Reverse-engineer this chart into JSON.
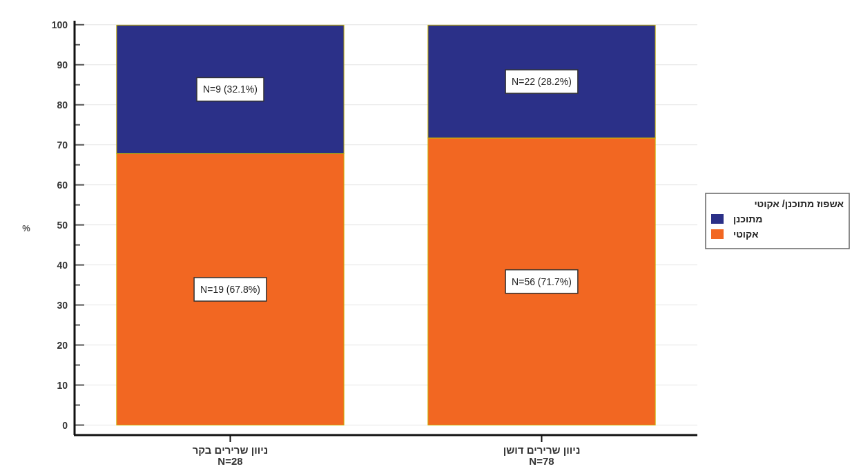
{
  "chart_data": {
    "type": "bar",
    "stacked": true,
    "ylabel": "%",
    "categories": [
      "ניוון שרירים בקר\nN=28",
      "ניוון שרירים דושן\nN=78"
    ],
    "series": [
      {
        "name": "אקוטי",
        "color": "#f26722",
        "values": [
          67.8,
          71.7
        ],
        "value_labels": [
          "N=19 (67.8%)",
          "N=56 (71.7%)"
        ]
      },
      {
        "name": "מתוכנן",
        "color": "#2b3088",
        "values": [
          32.1,
          28.2
        ],
        "value_labels": [
          "N=9 (32.1%)",
          "N=22 (28.2%)"
        ]
      }
    ],
    "legend_title": "אשפוז מתוכנן/ אקוטי",
    "legend": "right",
    "grid": "y",
    "ylim": [
      -2.5,
      101
    ],
    "yticks": [
      0,
      {
        "value": 5,
        "label": null
      },
      10,
      {
        "value": 15,
        "label": null
      },
      20,
      {
        "value": 25,
        "label": null
      },
      30,
      {
        "value": 35,
        "label": null
      },
      40,
      {
        "value": 45,
        "label": null
      },
      50,
      {
        "value": 55,
        "label": null
      },
      60,
      {
        "value": 65,
        "label": null
      },
      70,
      {
        "value": 75,
        "label": null
      },
      80,
      {
        "value": 85,
        "label": null
      },
      90,
      {
        "value": 95,
        "label": null
      },
      100
    ]
  }
}
